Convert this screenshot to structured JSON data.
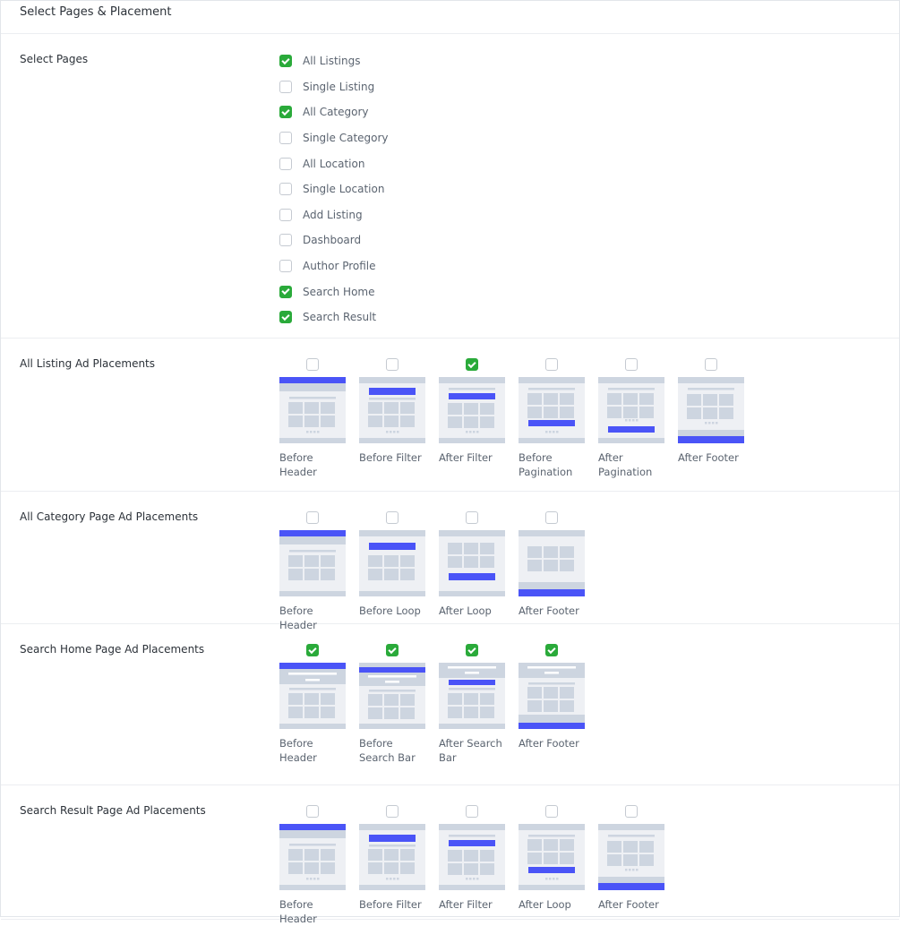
{
  "title": "Select Pages & Placement",
  "colors": {
    "accent": "#4a54f7",
    "check": "#2aaa3a",
    "thumb_bg": "#eef0f4",
    "thumb_block": "#cdd5e0"
  },
  "pages": {
    "label": "Select Pages",
    "items": [
      {
        "label": "All Listings",
        "checked": true
      },
      {
        "label": "Single Listing",
        "checked": false
      },
      {
        "label": "All Category",
        "checked": true
      },
      {
        "label": "Single Category",
        "checked": false
      },
      {
        "label": "All Location",
        "checked": false
      },
      {
        "label": "Single Location",
        "checked": false
      },
      {
        "label": "Add Listing",
        "checked": false
      },
      {
        "label": "Dashboard",
        "checked": false
      },
      {
        "label": "Author Profile",
        "checked": false
      },
      {
        "label": "Search Home",
        "checked": true
      },
      {
        "label": "Search Result",
        "checked": true
      }
    ]
  },
  "sections": [
    {
      "label": "All Listing Ad Placements",
      "items": [
        {
          "label": "Before Header",
          "checked": false,
          "variant": "before-header"
        },
        {
          "label": "Before Filter",
          "checked": false,
          "variant": "before-filter"
        },
        {
          "label": "After Filter",
          "checked": true,
          "variant": "after-filter"
        },
        {
          "label": "Before Pagination",
          "checked": false,
          "variant": "before-pagination"
        },
        {
          "label": "After Pagination",
          "checked": false,
          "variant": "after-pagination"
        },
        {
          "label": "After Footer",
          "checked": false,
          "variant": "after-footer"
        }
      ]
    },
    {
      "label": "All Category Page Ad Placements",
      "items": [
        {
          "label": "Before Header",
          "checked": false,
          "variant": "cat-before-header"
        },
        {
          "label": "Before Loop",
          "checked": false,
          "variant": "before-loop"
        },
        {
          "label": "After Loop",
          "checked": false,
          "variant": "after-loop"
        },
        {
          "label": "After Footer",
          "checked": false,
          "variant": "cat-after-footer"
        }
      ]
    },
    {
      "label": "Search Home Page Ad Placements",
      "items": [
        {
          "label": "Before Header",
          "checked": true,
          "variant": "search-before-header"
        },
        {
          "label": "Before Search Bar",
          "checked": true,
          "variant": "before-search-bar"
        },
        {
          "label": "After Search Bar",
          "checked": true,
          "variant": "after-search-bar"
        },
        {
          "label": "After Footer",
          "checked": true,
          "variant": "search-after-footer"
        }
      ]
    },
    {
      "label": "Search Result Page Ad Placements",
      "items": [
        {
          "label": "Before Header",
          "checked": false,
          "variant": "before-header"
        },
        {
          "label": "Before Filter",
          "checked": false,
          "variant": "before-filter"
        },
        {
          "label": "After Filter",
          "checked": false,
          "variant": "after-filter"
        },
        {
          "label": "After Loop",
          "checked": false,
          "variant": "after-loop-dots"
        },
        {
          "label": "After Footer",
          "checked": false,
          "variant": "after-footer"
        }
      ]
    }
  ]
}
